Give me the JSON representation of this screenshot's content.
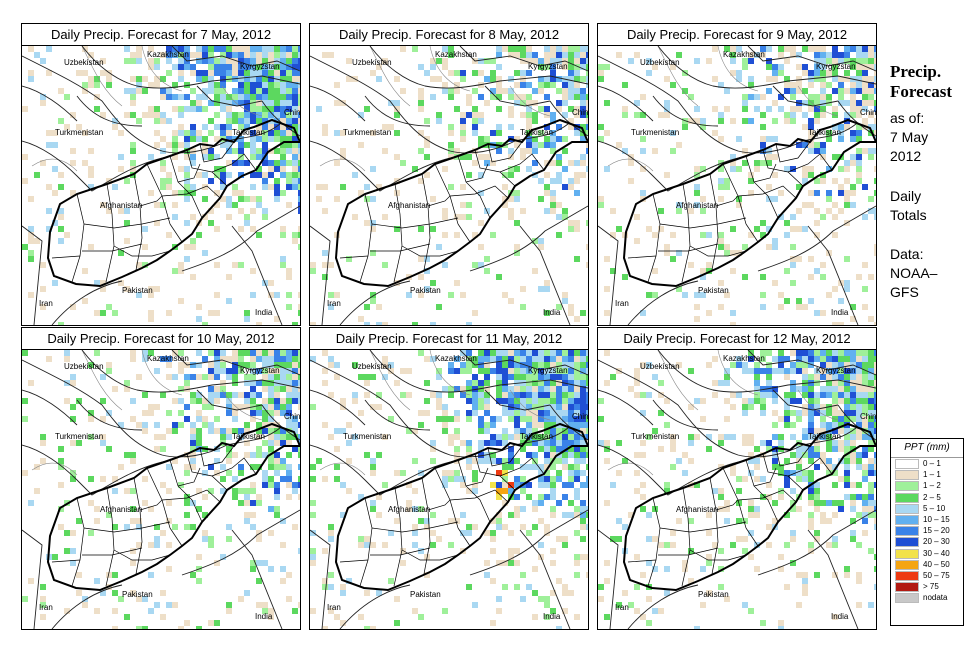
{
  "panels": [
    {
      "title": "Daily Precip. Forecast for  7 May, 2012",
      "intensity": 0.8,
      "seed": 7
    },
    {
      "title": "Daily Precip. Forecast for  8 May, 2012",
      "intensity": 0.45,
      "seed": 8
    },
    {
      "title": "Daily Precip. Forecast for  9 May, 2012",
      "intensity": 0.45,
      "seed": 9
    },
    {
      "title": "Daily Precip. Forecast for  10 May, 2012",
      "intensity": 0.55,
      "seed": 10
    },
    {
      "title": "Daily Precip. Forecast for  11 May, 2012",
      "intensity": 0.9,
      "seed": 11
    },
    {
      "title": "Daily Precip. Forecast for  12 May, 2012",
      "intensity": 0.7,
      "seed": 12
    }
  ],
  "countries": {
    "kazakhstan": "Kazakhstan",
    "uzbekistan": "Uzbekistan",
    "kyrgyzstan": "Kyrgyzstan",
    "china": "China",
    "turkmenistan": "Turkmenistan",
    "tajikistan": "Tajikistan",
    "afghanistan": "Afghanistan",
    "pakistan": "Pakistan",
    "iran": "Iran",
    "india": "India"
  },
  "side": {
    "title_line1": "Precip.",
    "title_line2": "Forecast",
    "asof": "as of:",
    "date_line1": "7 May",
    "date_line2": "2012",
    "daily_line1": "Daily",
    "daily_line2": "Totals",
    "data_line1": "Data:",
    "data_line2": "NOAA–",
    "data_line3": "GFS"
  },
  "legend": {
    "title": "PPT (mm)",
    "items": [
      {
        "label": "0 – 1",
        "color": "#ffffff"
      },
      {
        "label": "1 – 1",
        "color": "#eedfc8"
      },
      {
        "label": "1 – 2",
        "color": "#9ff09a"
      },
      {
        "label": "2 – 5",
        "color": "#5cd85f"
      },
      {
        "label": "5 – 10",
        "color": "#a9d8f2"
      },
      {
        "label": "10 – 15",
        "color": "#61b0f0"
      },
      {
        "label": "15 – 20",
        "color": "#3a82e8"
      },
      {
        "label": "20 – 30",
        "color": "#1f4fd4"
      },
      {
        "label": "30 – 40",
        "color": "#f2e24a"
      },
      {
        "label": "40 – 50",
        "color": "#f5a512"
      },
      {
        "label": "50 – 75",
        "color": "#ee3a12"
      },
      {
        "label": "> 75",
        "color": "#b21a12"
      },
      {
        "label": "nodata",
        "color": "#c8c8c8"
      }
    ]
  }
}
